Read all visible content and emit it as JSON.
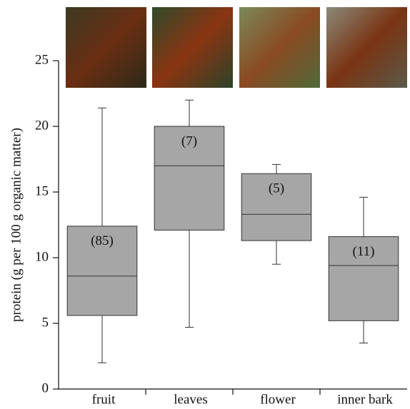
{
  "chart_data": {
    "type": "box",
    "ylabel": "protein (g per 100 g organic matter)",
    "categories": [
      "fruit",
      "leaves",
      "flower",
      "inner bark"
    ],
    "boxes": [
      {
        "whislo": 2.0,
        "q1": 5.6,
        "med": 8.6,
        "q3": 12.4,
        "whishi": 21.4,
        "label": "(85)"
      },
      {
        "whislo": 4.7,
        "q1": 12.1,
        "med": 17.0,
        "q3": 20.0,
        "whishi": 22.0,
        "label": "(7)"
      },
      {
        "whislo": 9.5,
        "q1": 11.3,
        "med": 13.3,
        "q3": 16.4,
        "whishi": 17.1,
        "label": "(5)"
      },
      {
        "whislo": 3.5,
        "q1": 5.2,
        "med": 9.4,
        "q3": 11.6,
        "whishi": 14.6,
        "label": "(11)"
      }
    ],
    "color": "#a6a6a6",
    "ylim": [
      0,
      25
    ],
    "yticks": [
      0,
      5,
      10,
      15,
      20,
      25
    ]
  }
}
